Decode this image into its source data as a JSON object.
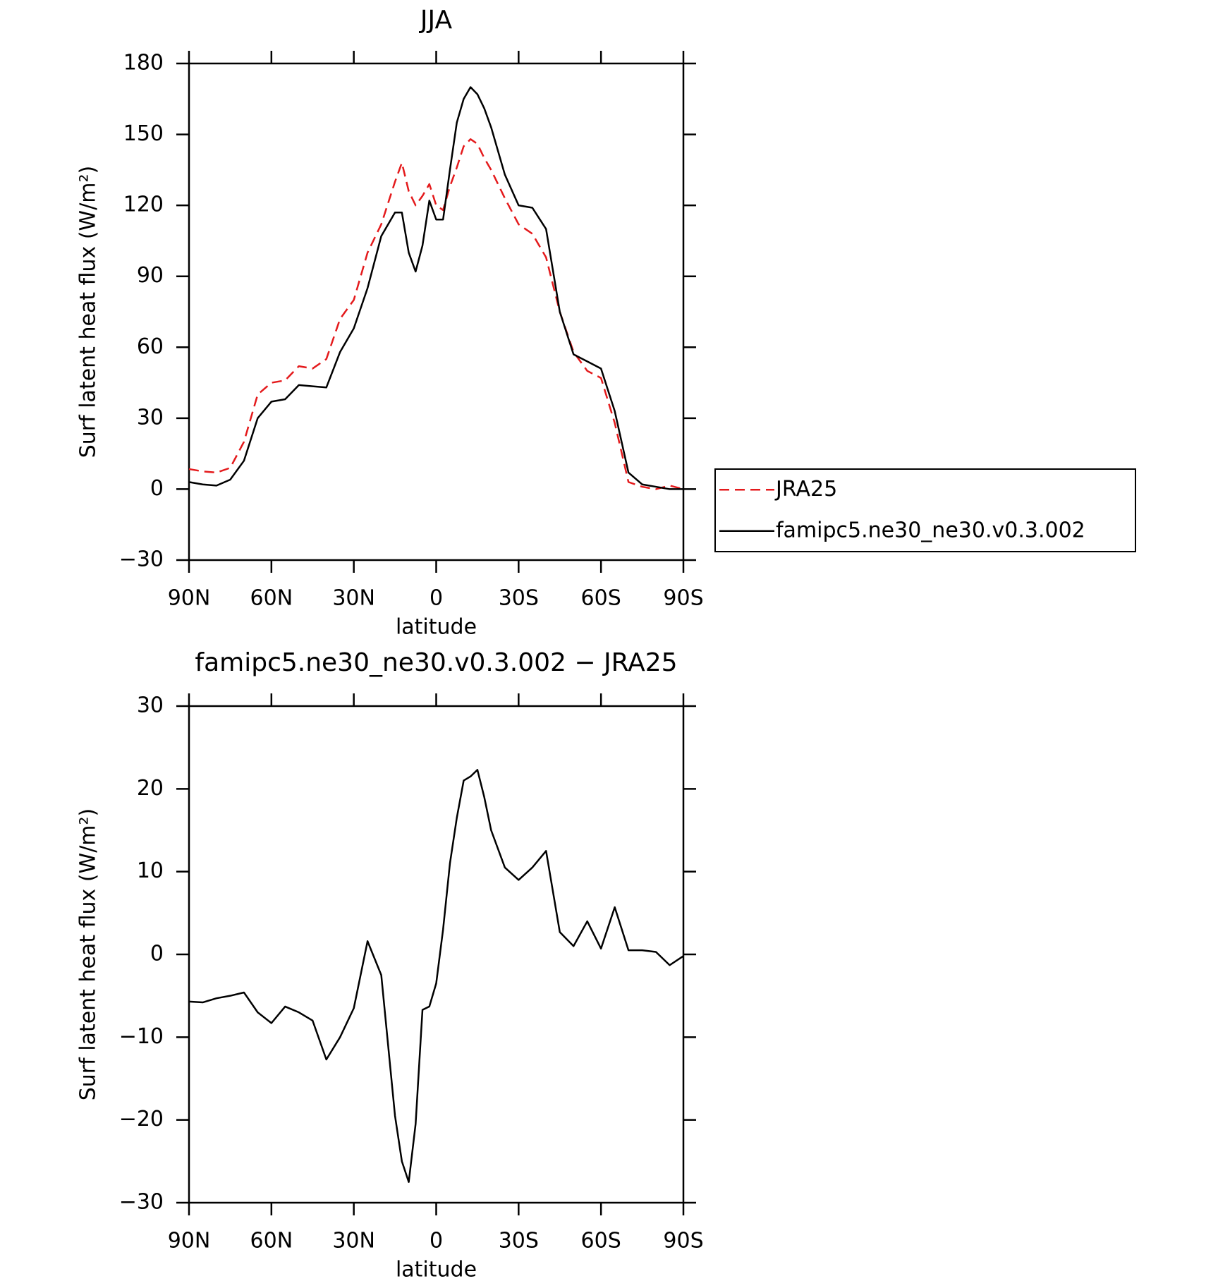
{
  "chart_data": [
    {
      "type": "line",
      "title": "JJA",
      "xlabel": "latitude",
      "ylabel": "Surf latent heat flux (W/m²)",
      "x": [
        90,
        85,
        80,
        75,
        70,
        65,
        60,
        55,
        50,
        45,
        40,
        35,
        30,
        25,
        20,
        15,
        12.5,
        10,
        7.5,
        5,
        2.5,
        0,
        -2.5,
        -5,
        -7.5,
        -10,
        -12.5,
        -15,
        -17.5,
        -20,
        -25,
        -30,
        -35,
        -40,
        -45,
        -50,
        -55,
        -60,
        -65,
        -70,
        -75,
        -80,
        -85,
        -90
      ],
      "series": [
        {
          "name": "JRA25",
          "color": "#e41a1c",
          "linestyle": "dashed",
          "values": [
            8.5,
            7.5,
            7,
            9,
            20,
            40,
            45,
            46,
            52,
            51,
            55,
            72,
            80,
            100,
            112,
            130,
            138,
            126,
            120,
            124,
            129,
            120,
            118,
            128,
            136,
            145,
            148,
            146,
            140,
            135,
            123,
            112,
            108,
            98,
            75,
            58,
            50,
            47,
            28,
            3,
            1,
            0,
            1.5,
            0
          ]
        },
        {
          "name": "famipc5.ne30_ne30.v0.3.002",
          "color": "#000000",
          "linestyle": "solid",
          "values": [
            3,
            2,
            1.5,
            4,
            12,
            30,
            37,
            38,
            44,
            43.5,
            43,
            58,
            68,
            85,
            107,
            117,
            117,
            100,
            92,
            103,
            122,
            114,
            114,
            135,
            155,
            165,
            170,
            167,
            161,
            153,
            133,
            120,
            119,
            110,
            75,
            57,
            54,
            51,
            33,
            7,
            2,
            1,
            0,
            0
          ]
        }
      ],
      "xlim": [
        90,
        -90
      ],
      "xticks": [
        {
          "value": 90,
          "label": "90N"
        },
        {
          "value": 60,
          "label": "60N"
        },
        {
          "value": 30,
          "label": "30N"
        },
        0,
        {
          "value": -30,
          "label": "30S"
        },
        {
          "value": -60,
          "label": "60S"
        },
        {
          "value": -90,
          "label": "90S"
        }
      ],
      "ylim": [
        -30,
        180
      ],
      "yticks": [
        {
          "value": -30,
          "label": "−30"
        },
        0,
        30,
        60,
        90,
        120,
        150,
        180
      ],
      "legend": "right"
    },
    {
      "type": "line",
      "title": "famipc5.ne30_ne30.v0.3.002 − JRA25",
      "xlabel": "latitude",
      "ylabel": "Surf latent heat flux (W/m²)",
      "x": [
        90,
        85,
        80,
        75,
        70,
        65,
        60,
        55,
        50,
        45,
        40,
        35,
        30,
        25,
        20,
        15,
        12.5,
        10,
        7.5,
        5,
        2.5,
        0,
        -2.5,
        -5,
        -7.5,
        -10,
        -12.5,
        -15,
        -17.5,
        -20,
        -25,
        -30,
        -35,
        -40,
        -45,
        -50,
        -55,
        -60,
        -65,
        -70,
        -75,
        -80,
        -85,
        -90
      ],
      "series": [
        {
          "color": "#000000",
          "linestyle": "solid",
          "values": [
            -5.7,
            -5.8,
            -5.3,
            -5,
            -4.6,
            -7,
            -8.3,
            -6.3,
            -7,
            -8,
            -12.7,
            -10,
            -6.5,
            1.6,
            -2.5,
            -19.5,
            -25,
            -27.5,
            -20.5,
            -6.7,
            -6.3,
            -3.5,
            3,
            11,
            16.5,
            21,
            21.5,
            22.3,
            19,
            15,
            10.5,
            9,
            10.5,
            12.5,
            2.7,
            1,
            4,
            0.7,
            5.7,
            0.5,
            0.5,
            0.3,
            -1.3,
            -0.2
          ]
        }
      ],
      "xlim": [
        90,
        -90
      ],
      "xticks": [
        {
          "value": 90,
          "label": "90N"
        },
        {
          "value": 60,
          "label": "60N"
        },
        {
          "value": 30,
          "label": "30N"
        },
        0,
        {
          "value": -30,
          "label": "30S"
        },
        {
          "value": -60,
          "label": "60S"
        },
        {
          "value": -90,
          "label": "90S"
        }
      ],
      "ylim": [
        -30,
        30
      ],
      "yticks": [
        {
          "value": -30,
          "label": "−30"
        },
        {
          "value": -20,
          "label": "−20"
        },
        {
          "value": -10,
          "label": "−10"
        },
        0,
        10,
        20,
        30
      ]
    }
  ]
}
